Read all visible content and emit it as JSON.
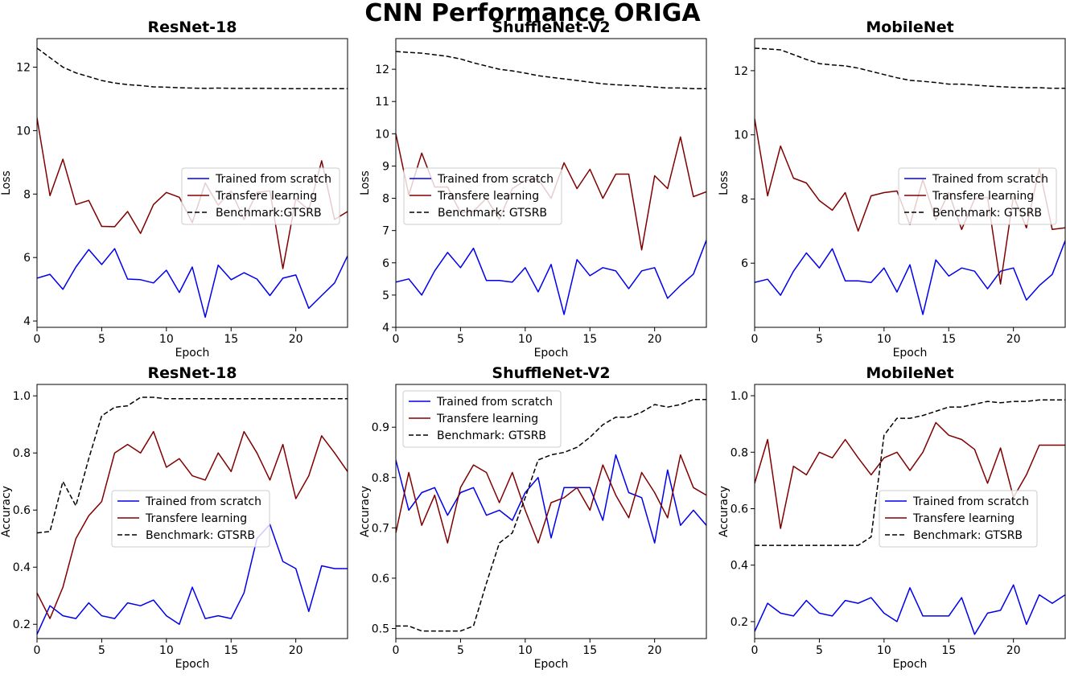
{
  "figure_title": "CNN Performance ORIGA",
  "colors": {
    "scratch": "#0000ee",
    "transfer": "#800000",
    "benchmark": "#000000"
  },
  "chart_data": [
    {
      "type": "line",
      "title": "ResNet-18",
      "xlabel": "Epoch",
      "ylabel": "Loss",
      "xlim": [
        0,
        24
      ],
      "ylim": [
        3.8,
        12.9
      ],
      "xticks": [
        0,
        5,
        10,
        15,
        20
      ],
      "yticks": [
        4,
        6,
        8,
        10,
        12
      ],
      "ytick_labels": [
        "4",
        "6",
        "8",
        "10",
        "12"
      ],
      "legend_position": "center-right",
      "x": [
        0,
        1,
        2,
        3,
        4,
        5,
        6,
        7,
        8,
        9,
        10,
        11,
        12,
        13,
        14,
        15,
        16,
        17,
        18,
        19,
        20,
        21,
        22,
        23,
        24
      ],
      "series": [
        {
          "name": "Trained from scratch",
          "style": "solid",
          "color_key": "scratch",
          "values": [
            5.35,
            5.47,
            5.0,
            5.7,
            6.25,
            5.78,
            6.28,
            5.32,
            5.3,
            5.2,
            5.6,
            4.9,
            5.7,
            4.12,
            5.76,
            5.3,
            5.52,
            5.32,
            4.8,
            5.35,
            5.45,
            4.4,
            4.8,
            5.2,
            6.05
          ]
        },
        {
          "name": "Transfere learning",
          "style": "solid",
          "color_key": "transfer",
          "values": [
            10.4,
            7.95,
            9.1,
            7.67,
            7.8,
            6.98,
            6.97,
            7.45,
            6.76,
            7.67,
            8.05,
            7.9,
            7.1,
            8.35,
            7.65,
            8.1,
            7.2,
            8.05,
            8.1,
            5.65,
            7.85,
            7.5,
            9.05,
            7.2,
            7.45
          ]
        },
        {
          "name": "Benchmark:GTSRB",
          "style": "dashed",
          "color_key": "benchmark",
          "values": [
            12.6,
            12.3,
            12.0,
            11.82,
            11.7,
            11.58,
            11.5,
            11.45,
            11.42,
            11.38,
            11.37,
            11.35,
            11.34,
            11.33,
            11.34,
            11.33,
            11.33,
            11.33,
            11.33,
            11.32,
            11.32,
            11.32,
            11.32,
            11.32,
            11.32
          ]
        }
      ]
    },
    {
      "type": "line",
      "title": "ShuffleNet-V2",
      "xlabel": "Epoch",
      "ylabel": "Loss",
      "xlim": [
        0,
        24
      ],
      "ylim": [
        4.0,
        12.95
      ],
      "xticks": [
        0,
        5,
        10,
        15,
        20
      ],
      "yticks": [
        4,
        5,
        6,
        7,
        8,
        9,
        10,
        11,
        12
      ],
      "ytick_labels": [
        "4",
        "5",
        "6",
        "7",
        "8",
        "9",
        "10",
        "11",
        "12"
      ],
      "legend_position": "upper-center",
      "x": [
        0,
        1,
        2,
        3,
        4,
        5,
        6,
        7,
        8,
        9,
        10,
        11,
        12,
        13,
        14,
        15,
        16,
        17,
        18,
        19,
        20,
        21,
        22,
        23,
        24
      ],
      "series": [
        {
          "name": "Trained from scratch",
          "style": "solid",
          "color_key": "scratch",
          "values": [
            5.4,
            5.5,
            5.0,
            5.75,
            6.32,
            5.85,
            6.45,
            5.45,
            5.45,
            5.4,
            5.85,
            5.1,
            5.95,
            4.4,
            6.1,
            5.6,
            5.85,
            5.75,
            5.2,
            5.75,
            5.85,
            4.9,
            5.3,
            5.65,
            6.7
          ]
        },
        {
          "name": "Transfere learning",
          "style": "solid",
          "color_key": "transfer",
          "values": [
            10.0,
            8.1,
            9.4,
            8.35,
            8.35,
            7.55,
            7.6,
            8.0,
            7.35,
            8.3,
            8.55,
            8.6,
            8.0,
            9.1,
            8.3,
            8.9,
            8.0,
            8.75,
            8.75,
            6.4,
            8.7,
            8.3,
            9.9,
            8.05,
            8.2
          ]
        },
        {
          "name": "Benchmark: GTSRB",
          "style": "dashed",
          "color_key": "benchmark",
          "values": [
            12.55,
            12.52,
            12.5,
            12.45,
            12.4,
            12.32,
            12.2,
            12.1,
            12.0,
            11.95,
            11.88,
            11.8,
            11.75,
            11.7,
            11.65,
            11.6,
            11.55,
            11.52,
            11.5,
            11.48,
            11.45,
            11.42,
            11.42,
            11.4,
            11.4
          ]
        }
      ]
    },
    {
      "type": "line",
      "title": "MobileNet",
      "xlabel": "Epoch",
      "ylabel": "Loss",
      "xlim": [
        0,
        24
      ],
      "ylim": [
        4.0,
        13.0
      ],
      "xticks": [
        0,
        5,
        10,
        15,
        20
      ],
      "yticks": [
        6,
        8,
        10,
        12
      ],
      "ytick_labels": [
        "6",
        "8",
        "10",
        "12"
      ],
      "legend_position": "center-right",
      "x": [
        0,
        1,
        2,
        3,
        4,
        5,
        6,
        7,
        8,
        9,
        10,
        11,
        12,
        13,
        14,
        15,
        16,
        17,
        18,
        19,
        20,
        21,
        22,
        23,
        24
      ],
      "series": [
        {
          "name": "Trained from scratch",
          "style": "solid",
          "color_key": "scratch",
          "values": [
            5.4,
            5.5,
            5.0,
            5.75,
            6.32,
            5.85,
            6.45,
            5.45,
            5.45,
            5.4,
            5.85,
            5.1,
            5.95,
            4.4,
            6.1,
            5.6,
            5.85,
            5.75,
            5.2,
            5.75,
            5.85,
            4.85,
            5.3,
            5.65,
            6.7
          ]
        },
        {
          "name": "Transfere learning",
          "style": "solid",
          "color_key": "transfer",
          "values": [
            10.5,
            8.1,
            9.65,
            8.65,
            8.5,
            7.95,
            7.65,
            8.2,
            7.0,
            8.1,
            8.2,
            8.25,
            7.2,
            8.6,
            7.35,
            8.2,
            7.05,
            8.0,
            8.05,
            5.35,
            8.1,
            7.1,
            8.95,
            7.05,
            7.1
          ]
        },
        {
          "name": "Benchmark: GTSRB",
          "style": "dashed",
          "color_key": "benchmark",
          "values": [
            12.7,
            12.68,
            12.65,
            12.5,
            12.35,
            12.22,
            12.18,
            12.15,
            12.08,
            11.98,
            11.88,
            11.78,
            11.7,
            11.67,
            11.63,
            11.58,
            11.58,
            11.55,
            11.52,
            11.5,
            11.48,
            11.47,
            11.47,
            11.45,
            11.45
          ]
        }
      ]
    },
    {
      "type": "line",
      "title": "ResNet-18",
      "xlabel": "Epoch",
      "ylabel": "Accuracy",
      "xlim": [
        0,
        24
      ],
      "ylim": [
        0.15,
        1.04
      ],
      "xticks": [
        0,
        5,
        10,
        15,
        20
      ],
      "yticks": [
        0.2,
        0.4,
        0.6,
        0.8,
        1.0
      ],
      "ytick_labels": [
        "0.2",
        "0.4",
        "0.6",
        "0.8",
        "1.0"
      ],
      "legend_position": "center",
      "x": [
        0,
        1,
        2,
        3,
        4,
        5,
        6,
        7,
        8,
        9,
        10,
        11,
        12,
        13,
        14,
        15,
        16,
        17,
        18,
        19,
        20,
        21,
        22,
        23,
        24
      ],
      "series": [
        {
          "name": "Trained from scratch",
          "style": "solid",
          "color_key": "scratch",
          "values": [
            0.165,
            0.265,
            0.23,
            0.22,
            0.275,
            0.23,
            0.22,
            0.275,
            0.265,
            0.285,
            0.23,
            0.2,
            0.33,
            0.22,
            0.23,
            0.22,
            0.31,
            0.5,
            0.55,
            0.42,
            0.395,
            0.245,
            0.405,
            0.395,
            0.395
          ]
        },
        {
          "name": "Transfere learning",
          "style": "solid",
          "color_key": "transfer",
          "values": [
            0.31,
            0.22,
            0.33,
            0.5,
            0.58,
            0.63,
            0.8,
            0.83,
            0.8,
            0.875,
            0.75,
            0.78,
            0.72,
            0.705,
            0.8,
            0.735,
            0.875,
            0.8,
            0.705,
            0.83,
            0.64,
            0.72,
            0.86,
            0.8,
            0.735
          ]
        },
        {
          "name": "Benchmark: GTSRB",
          "style": "dashed",
          "color_key": "benchmark",
          "values": [
            0.52,
            0.525,
            0.7,
            0.615,
            0.78,
            0.93,
            0.96,
            0.965,
            0.995,
            0.995,
            0.99,
            0.99,
            0.99,
            0.99,
            0.99,
            0.99,
            0.99,
            0.99,
            0.99,
            0.99,
            0.99,
            0.99,
            0.99,
            0.99,
            0.99
          ]
        }
      ]
    },
    {
      "type": "line",
      "title": "ShuffleNet-V2",
      "xlabel": "Epoch",
      "ylabel": "Accuracy",
      "xlim": [
        0,
        24
      ],
      "ylim": [
        0.48,
        0.985
      ],
      "xticks": [
        0,
        5,
        10,
        15,
        20
      ],
      "yticks": [
        0.5,
        0.6,
        0.7,
        0.8,
        0.9
      ],
      "ytick_labels": [
        "0.5",
        "0.6",
        "0.7",
        "0.8",
        "0.9"
      ],
      "legend_position": "upper-left",
      "x": [
        0,
        1,
        2,
        3,
        4,
        5,
        6,
        7,
        8,
        9,
        10,
        11,
        12,
        13,
        14,
        15,
        16,
        17,
        18,
        19,
        20,
        21,
        22,
        23,
        24
      ],
      "series": [
        {
          "name": "Trained from scratch",
          "style": "solid",
          "color_key": "scratch",
          "values": [
            0.835,
            0.735,
            0.77,
            0.78,
            0.725,
            0.77,
            0.78,
            0.725,
            0.735,
            0.715,
            0.77,
            0.8,
            0.68,
            0.78,
            0.78,
            0.78,
            0.715,
            0.845,
            0.77,
            0.76,
            0.67,
            0.815,
            0.705,
            0.735,
            0.705
          ]
        },
        {
          "name": "Transfere learning",
          "style": "solid",
          "color_key": "transfer",
          "values": [
            0.69,
            0.81,
            0.705,
            0.765,
            0.67,
            0.78,
            0.825,
            0.81,
            0.75,
            0.81,
            0.735,
            0.67,
            0.75,
            0.76,
            0.78,
            0.735,
            0.825,
            0.765,
            0.72,
            0.81,
            0.77,
            0.72,
            0.845,
            0.78,
            0.765
          ]
        },
        {
          "name": "Benchmark: GTSRB",
          "style": "dashed",
          "color_key": "benchmark",
          "values": [
            0.505,
            0.505,
            0.495,
            0.495,
            0.495,
            0.495,
            0.505,
            0.59,
            0.67,
            0.69,
            0.76,
            0.835,
            0.845,
            0.85,
            0.86,
            0.88,
            0.905,
            0.92,
            0.92,
            0.93,
            0.945,
            0.94,
            0.945,
            0.955,
            0.955
          ]
        }
      ]
    },
    {
      "type": "line",
      "title": "MobileNet",
      "xlabel": "Epoch",
      "ylabel": "Accuracy",
      "xlim": [
        0,
        24
      ],
      "ylim": [
        0.14,
        1.04
      ],
      "xticks": [
        0,
        5,
        10,
        15,
        20
      ],
      "yticks": [
        0.2,
        0.4,
        0.6,
        0.8,
        1.0
      ],
      "ytick_labels": [
        "0.2",
        "0.4",
        "0.6",
        "0.8",
        "1.0"
      ],
      "legend_position": "center-right",
      "x": [
        0,
        1,
        2,
        3,
        4,
        5,
        6,
        7,
        8,
        9,
        10,
        11,
        12,
        13,
        14,
        15,
        16,
        17,
        18,
        19,
        20,
        21,
        22,
        23,
        24
      ],
      "series": [
        {
          "name": "Trained from scratch",
          "style": "solid",
          "color_key": "scratch",
          "values": [
            0.165,
            0.265,
            0.23,
            0.22,
            0.275,
            0.23,
            0.22,
            0.275,
            0.265,
            0.285,
            0.23,
            0.2,
            0.32,
            0.22,
            0.22,
            0.22,
            0.285,
            0.155,
            0.23,
            0.24,
            0.33,
            0.19,
            0.295,
            0.265,
            0.295
          ]
        },
        {
          "name": "Transfere learning",
          "style": "solid",
          "color_key": "transfer",
          "values": [
            0.69,
            0.845,
            0.53,
            0.75,
            0.72,
            0.8,
            0.78,
            0.845,
            0.78,
            0.72,
            0.78,
            0.8,
            0.735,
            0.8,
            0.905,
            0.86,
            0.845,
            0.81,
            0.69,
            0.815,
            0.64,
            0.72,
            0.825,
            0.825,
            0.825
          ]
        },
        {
          "name": "Benchmark: GTSRB",
          "style": "dashed",
          "color_key": "benchmark",
          "values": [
            0.47,
            0.47,
            0.47,
            0.47,
            0.47,
            0.47,
            0.47,
            0.47,
            0.47,
            0.5,
            0.86,
            0.92,
            0.92,
            0.93,
            0.945,
            0.96,
            0.96,
            0.97,
            0.98,
            0.975,
            0.98,
            0.98,
            0.985,
            0.985,
            0.985
          ]
        }
      ]
    }
  ]
}
